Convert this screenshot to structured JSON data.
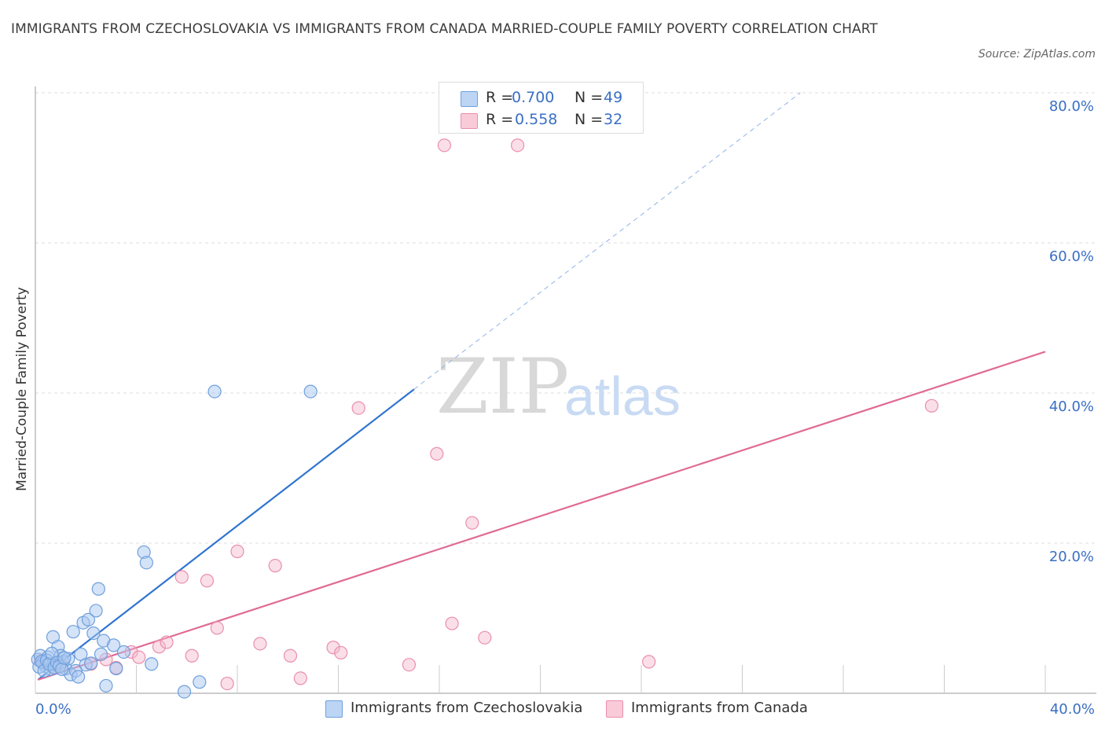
{
  "header": {
    "title": "IMMIGRANTS FROM CZECHOSLOVAKIA VS IMMIGRANTS FROM CANADA MARRIED-COUPLE FAMILY POVERTY CORRELATION CHART",
    "source": "Source: ZipAtlas.com"
  },
  "legend": {
    "r_label": "R =",
    "n_label": "N =",
    "series": [
      {
        "r": "0.700",
        "n": "49"
      },
      {
        "r": "0.558",
        "n": "32"
      }
    ]
  },
  "watermark": {
    "zip": "ZIP",
    "atlas": "atlas"
  },
  "colors": {
    "blue_fill": "#a9c8f0",
    "blue_stroke": "#6e9fdc",
    "blue_line": "#2f74d0",
    "pink_fill": "#f5b8cb",
    "pink_stroke": "#ea8eac",
    "pink_line": "#e06b95",
    "axis_text": "#3a6fc4"
  },
  "chart_data": {
    "type": "scatter",
    "title": "IMMIGRANTS FROM CZECHOSLOVAKIA VS IMMIGRANTS FROM CANADA MARRIED-COUPLE FAMILY POVERTY CORRELATION CHART",
    "xlabel": "",
    "ylabel": "Married-Couple Family Poverty",
    "xlim": [
      0,
      40
    ],
    "ylim": [
      0,
      80
    ],
    "x_tick_labels": [
      "0.0%",
      "40.0%"
    ],
    "y_ticks": [
      20,
      40,
      60,
      80
    ],
    "y_tick_labels": [
      "20.0%",
      "40.0%",
      "60.0%",
      "80.0%"
    ],
    "grid": true,
    "legend_position": "top-center",
    "series": [
      {
        "name": "Immigrants from Czechoslovakia",
        "color": "#a9c8f0",
        "points": [
          [
            0.1,
            4.5
          ],
          [
            0.2,
            5.0
          ],
          [
            0.3,
            4.0
          ],
          [
            0.4,
            3.6
          ],
          [
            0.5,
            4.8
          ],
          [
            0.6,
            3.2
          ],
          [
            0.7,
            7.5
          ],
          [
            0.8,
            3.8
          ],
          [
            0.9,
            6.2
          ],
          [
            1.0,
            5.0
          ],
          [
            1.1,
            4.2
          ],
          [
            1.2,
            3.3
          ],
          [
            1.3,
            4.6
          ],
          [
            1.4,
            2.5
          ],
          [
            1.5,
            8.2
          ],
          [
            1.6,
            3.0
          ],
          [
            1.7,
            2.2
          ],
          [
            1.8,
            5.2
          ],
          [
            1.9,
            9.4
          ],
          [
            2.0,
            3.8
          ],
          [
            2.1,
            9.8
          ],
          [
            2.2,
            4.0
          ],
          [
            2.3,
            8.0
          ],
          [
            2.4,
            11.0
          ],
          [
            2.5,
            13.9
          ],
          [
            2.6,
            5.2
          ],
          [
            2.7,
            7.0
          ],
          [
            2.8,
            1.0
          ],
          [
            3.1,
            6.4
          ],
          [
            3.2,
            3.3
          ],
          [
            3.5,
            5.5
          ],
          [
            4.3,
            18.8
          ],
          [
            4.4,
            17.4
          ],
          [
            4.6,
            3.9
          ],
          [
            5.9,
            0.2
          ],
          [
            6.5,
            1.5
          ],
          [
            7.1,
            40.2
          ],
          [
            10.9,
            40.2
          ],
          [
            0.15,
            3.5
          ],
          [
            0.25,
            4.2
          ],
          [
            0.35,
            3.0
          ],
          [
            0.45,
            4.4
          ],
          [
            0.55,
            3.9
          ],
          [
            0.65,
            5.3
          ],
          [
            0.75,
            3.4
          ],
          [
            0.85,
            4.1
          ],
          [
            0.95,
            3.6
          ],
          [
            1.05,
            3.2
          ],
          [
            1.15,
            4.7
          ]
        ],
        "trend": {
          "x": [
            0.1,
            15.0
          ],
          "y": [
            1.8,
            40.5
          ],
          "extended_to": [
            30.3,
            80.0
          ]
        }
      },
      {
        "name": "Immigrants from Canada",
        "color": "#f5b8cb",
        "points": [
          [
            0.2,
            4.3
          ],
          [
            0.8,
            3.5
          ],
          [
            1.0,
            4.0
          ],
          [
            2.2,
            3.9
          ],
          [
            2.8,
            4.5
          ],
          [
            3.2,
            3.4
          ],
          [
            3.8,
            5.5
          ],
          [
            4.1,
            4.8
          ],
          [
            4.9,
            6.2
          ],
          [
            5.2,
            6.8
          ],
          [
            5.8,
            15.5
          ],
          [
            6.2,
            5.0
          ],
          [
            6.8,
            15.0
          ],
          [
            7.2,
            8.7
          ],
          [
            7.6,
            1.3
          ],
          [
            8.0,
            18.9
          ],
          [
            8.9,
            6.6
          ],
          [
            9.5,
            17.0
          ],
          [
            10.1,
            5.0
          ],
          [
            10.5,
            2.0
          ],
          [
            11.8,
            6.1
          ],
          [
            12.1,
            5.4
          ],
          [
            12.8,
            38.0
          ],
          [
            14.8,
            3.8
          ],
          [
            15.9,
            31.9
          ],
          [
            16.2,
            73.0
          ],
          [
            16.5,
            9.3
          ],
          [
            17.3,
            22.7
          ],
          [
            17.8,
            7.4
          ],
          [
            19.1,
            73.0
          ],
          [
            24.3,
            4.2
          ],
          [
            35.5,
            38.3
          ]
        ],
        "trend": {
          "x": [
            0.1,
            40.0
          ],
          "y": [
            1.8,
            45.5
          ]
        }
      }
    ]
  },
  "bottom_legend": [
    {
      "label": "Immigrants from Czechoslovakia"
    },
    {
      "label": "Immigrants from Canada"
    }
  ]
}
